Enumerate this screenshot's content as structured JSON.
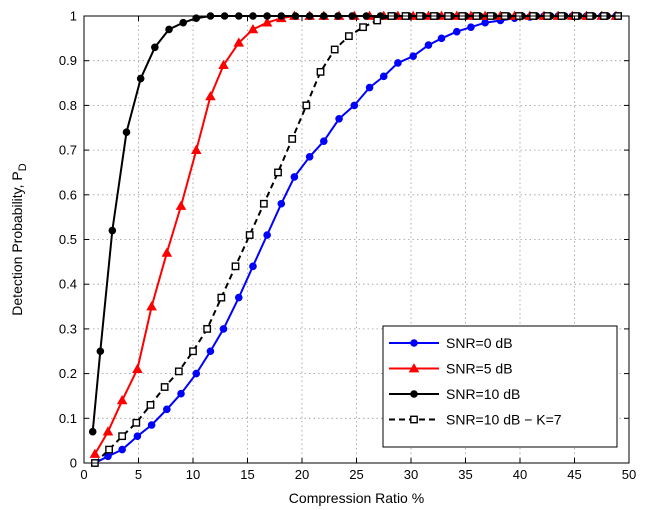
{
  "chart_data": {
    "type": "line",
    "xlabel": "Compression Ratio %",
    "ylabel": "Detection Probability, P",
    "ylabel_subscript": "D",
    "xlim": [
      0,
      50
    ],
    "ylim": [
      0,
      1
    ],
    "xticks": [
      "0",
      "5",
      "10",
      "15",
      "20",
      "25",
      "30",
      "35",
      "40",
      "45",
      "50"
    ],
    "yticks": [
      "0",
      "0.1",
      "0.2",
      "0.3",
      "0.4",
      "0.5",
      "0.6",
      "0.7",
      "0.8",
      "0.9",
      "1"
    ],
    "grid": true,
    "legend_position": "bottom-right",
    "series": [
      {
        "name": "SNR=0 dB",
        "color": "#0000ff",
        "marker": "circle",
        "line": "solid",
        "x": [
          1,
          2.2,
          3.5,
          4.9,
          6.2,
          7.6,
          8.9,
          10.3,
          11.6,
          12.8,
          14.2,
          15.5,
          16.8,
          18.1,
          19.3,
          20.7,
          22,
          23.4,
          24.8,
          26.2,
          27.5,
          28.8,
          30.2,
          31.6,
          32.8,
          34.2,
          35.5,
          36.8,
          38.2,
          39.5,
          40.9,
          42.2,
          43.5,
          44.8,
          46.1,
          47.5,
          48.8
        ],
        "y": [
          0,
          0.015,
          0.03,
          0.06,
          0.085,
          0.12,
          0.155,
          0.2,
          0.25,
          0.3,
          0.37,
          0.44,
          0.51,
          0.58,
          0.64,
          0.685,
          0.72,
          0.77,
          0.8,
          0.84,
          0.865,
          0.895,
          0.91,
          0.935,
          0.95,
          0.965,
          0.975,
          0.985,
          0.99,
          0.995,
          0.998,
          1,
          1,
          1,
          1,
          1,
          1
        ]
      },
      {
        "name": "SNR=5 dB",
        "color": "#ff0000",
        "marker": "triangle",
        "line": "solid",
        "x": [
          1,
          2.2,
          3.5,
          4.9,
          6.2,
          7.6,
          8.9,
          10.3,
          11.6,
          12.8,
          14.2,
          15.5,
          16.8,
          18.1,
          19.3,
          20.7,
          22,
          23.4,
          24.8,
          26.2,
          27.5,
          28.8,
          30.2,
          31.6,
          32.8,
          34.2,
          35.5,
          36.8,
          38.2,
          39.5,
          40.9,
          42.2,
          43.5,
          44.8,
          46.1,
          47.5,
          48.8
        ],
        "y": [
          0.02,
          0.07,
          0.14,
          0.21,
          0.35,
          0.47,
          0.575,
          0.7,
          0.82,
          0.89,
          0.94,
          0.97,
          0.985,
          0.995,
          1,
          1,
          1,
          1,
          1,
          1,
          1,
          1,
          1,
          1,
          1,
          1,
          1,
          1,
          1,
          1,
          1,
          1,
          1,
          1,
          1,
          1,
          1
        ]
      },
      {
        "name": "SNR=10 dB",
        "color": "#000000",
        "marker": "circle",
        "line": "solid",
        "x": [
          0.8,
          1.5,
          2.6,
          3.9,
          5.2,
          6.5,
          7.8,
          9.1,
          10.3,
          11.6,
          12.9,
          14.2,
          15.5,
          16.8,
          18.1,
          19.4,
          20.7,
          22,
          23.3,
          24.6,
          25.9,
          27.2,
          28.5,
          29.8,
          31.1,
          32.4,
          33.7,
          35,
          36.3,
          37.6,
          38.9,
          40.2,
          41.5,
          42.8,
          44.1,
          45.4,
          46.7,
          48
        ],
        "y": [
          0.07,
          0.25,
          0.52,
          0.74,
          0.86,
          0.93,
          0.97,
          0.985,
          0.995,
          1,
          1,
          1,
          1,
          1,
          1,
          1,
          1,
          1,
          1,
          1,
          1,
          1,
          1,
          1,
          1,
          1,
          1,
          1,
          1,
          1,
          1,
          1,
          1,
          1,
          1,
          1,
          1,
          1
        ]
      },
      {
        "name": "SNR=10 dB − K=7",
        "color": "#000000",
        "marker": "square",
        "line": "dashed",
        "x": [
          1,
          2.3,
          3.5,
          4.8,
          6.1,
          7.4,
          8.7,
          10,
          11.3,
          12.6,
          13.9,
          15.2,
          16.5,
          17.8,
          19.1,
          20.4,
          21.7,
          23,
          24.3,
          25.6,
          26.9,
          28.2,
          29.5,
          30.8,
          32.1,
          33.4,
          34.7,
          36,
          37.3,
          38.6,
          39.9,
          41.2,
          42.5,
          43.8,
          45.1,
          46.4,
          47.7,
          49
        ],
        "y": [
          0,
          0.03,
          0.06,
          0.09,
          0.13,
          0.17,
          0.205,
          0.25,
          0.3,
          0.37,
          0.44,
          0.51,
          0.58,
          0.65,
          0.725,
          0.8,
          0.875,
          0.925,
          0.955,
          0.975,
          0.99,
          1,
          1,
          1,
          1,
          1,
          1,
          1,
          1,
          1,
          1,
          1,
          1,
          1,
          1,
          1,
          1,
          1
        ]
      }
    ]
  }
}
